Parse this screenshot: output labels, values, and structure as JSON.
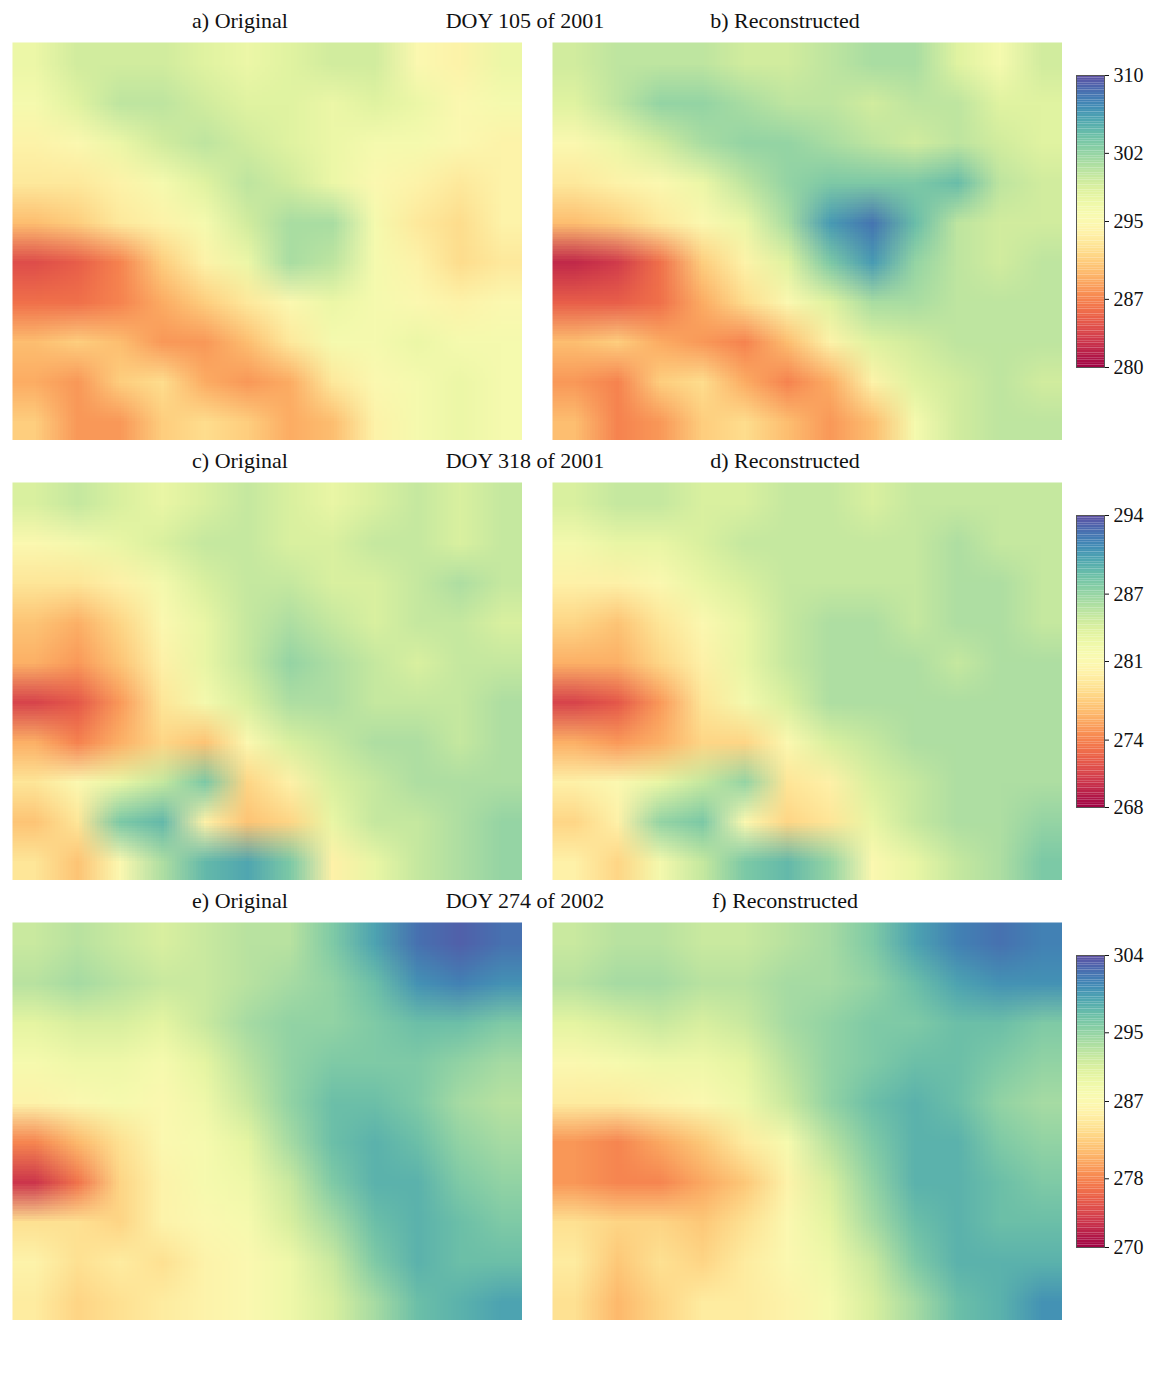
{
  "chart_data": [
    {
      "type": "heatmap",
      "title": "DOY 105 of 2001",
      "tick_labels": false,
      "colorbar": {
        "range": [
          280,
          310
        ],
        "ticks": [
          280,
          287,
          295,
          302,
          310
        ]
      },
      "panels": [
        {
          "title": "a) Original",
          "cells": [
            [
              297,
              299,
              299,
              299,
              298,
              297,
              298,
              299,
              299,
              295,
              294,
              297
            ],
            [
              296,
              298,
              300,
              300,
              299,
              298,
              298,
              297,
              298,
              297,
              295,
              296
            ],
            [
              294,
              295,
              297,
              299,
              300,
              299,
              298,
              297,
              296,
              296,
              295,
              294
            ],
            [
              293,
              293,
              294,
              296,
              298,
              300,
              299,
              297,
              295,
              294,
              293,
              294
            ],
            [
              290,
              291,
              293,
              294,
              296,
              299,
              301,
              301,
              296,
              293,
              292,
              294
            ],
            [
              284,
              285,
              287,
              291,
              294,
              297,
              301,
              300,
              296,
              294,
              292,
              293
            ],
            [
              286,
              286,
              287,
              289,
              291,
              293,
              295,
              297,
              296,
              295,
              294,
              295
            ],
            [
              290,
              291,
              290,
              288,
              288,
              290,
              293,
              296,
              296,
              297,
              296,
              296
            ],
            [
              289,
              288,
              291,
              292,
              289,
              288,
              289,
              293,
              295,
              296,
              297,
              296
            ],
            [
              291,
              288,
              288,
              291,
              292,
              291,
              289,
              290,
              294,
              296,
              297,
              296
            ]
          ]
        },
        {
          "title": "b) Reconstructed",
          "cells": [
            [
              299,
              300,
              300,
              300,
              299,
              299,
              300,
              301,
              301,
              298,
              296,
              299
            ],
            [
              298,
              300,
              302,
              302,
              301,
              300,
              300,
              299,
              300,
              300,
              298,
              298
            ],
            [
              295,
              297,
              299,
              301,
              302,
              302,
              301,
              300,
              299,
              300,
              299,
              298
            ],
            [
              293,
              294,
              295,
              297,
              300,
              302,
              303,
              303,
              303,
              304,
              300,
              299
            ],
            [
              290,
              291,
              293,
              295,
              297,
              301,
              306,
              308,
              304,
              300,
              299,
              299
            ],
            [
              282,
              283,
              286,
              291,
              294,
              298,
              303,
              306,
              302,
              300,
              299,
              300
            ],
            [
              285,
              285,
              286,
              289,
              292,
              295,
              298,
              301,
              301,
              300,
              300,
              300
            ],
            [
              290,
              291,
              289,
              288,
              287,
              290,
              294,
              298,
              299,
              300,
              300,
              300
            ],
            [
              288,
              287,
              291,
              292,
              289,
              287,
              289,
              294,
              298,
              299,
              300,
              299
            ],
            [
              290,
              287,
              288,
              291,
              292,
              290,
              288,
              290,
              296,
              299,
              300,
              300
            ]
          ]
        }
      ]
    },
    {
      "type": "heatmap",
      "title": "DOY 318 of 2001",
      "tick_labels": false,
      "colorbar": {
        "range": [
          268,
          294
        ],
        "ticks": [
          268,
          274,
          281,
          287,
          294
        ]
      },
      "panels": [
        {
          "title": "c) Original",
          "cells": [
            [
              284,
              285,
              284,
              283,
              284,
              285,
              284,
              283,
              284,
              285,
              284,
              285
            ],
            [
              281,
              282,
              283,
              284,
              285,
              285,
              284,
              284,
              285,
              285,
              284,
              285
            ],
            [
              279,
              279,
              280,
              282,
              284,
              285,
              285,
              284,
              284,
              285,
              286,
              285
            ],
            [
              277,
              276,
              278,
              281,
              283,
              285,
              286,
              285,
              284,
              285,
              285,
              284
            ],
            [
              276,
              275,
              277,
              280,
              283,
              285,
              287,
              286,
              285,
              284,
              285,
              285
            ],
            [
              271,
              272,
              275,
              279,
              282,
              284,
              286,
              286,
              285,
              285,
              285,
              286
            ],
            [
              276,
              274,
              276,
              278,
              277,
              281,
              284,
              285,
              286,
              286,
              285,
              286
            ],
            [
              279,
              281,
              283,
              285,
              288,
              278,
              280,
              284,
              285,
              286,
              286,
              286
            ],
            [
              277,
              279,
              288,
              289,
              280,
              277,
              278,
              283,
              285,
              285,
              286,
              287
            ],
            [
              279,
              277,
              281,
              286,
              289,
              290,
              288,
              280,
              283,
              285,
              286,
              287
            ]
          ]
        },
        {
          "title": "d) Reconstructed",
          "cells": [
            [
              284,
              285,
              285,
              284,
              284,
              285,
              285,
              284,
              285,
              285,
              285,
              285
            ],
            [
              282,
              283,
              283,
              284,
              285,
              285,
              285,
              285,
              285,
              286,
              285,
              285
            ],
            [
              280,
              280,
              281,
              283,
              284,
              285,
              285,
              285,
              285,
              286,
              286,
              285
            ],
            [
              278,
              277,
              279,
              281,
              283,
              285,
              286,
              286,
              285,
              286,
              286,
              285
            ],
            [
              276,
              276,
              278,
              280,
              283,
              285,
              286,
              286,
              286,
              285,
              286,
              286
            ],
            [
              271,
              272,
              275,
              279,
              282,
              284,
              286,
              286,
              286,
              286,
              286,
              286
            ],
            [
              276,
              275,
              276,
              278,
              278,
              281,
              284,
              285,
              286,
              286,
              286,
              286
            ],
            [
              280,
              281,
              283,
              285,
              287,
              279,
              280,
              284,
              285,
              286,
              286,
              286
            ],
            [
              278,
              280,
              287,
              288,
              281,
              278,
              279,
              283,
              285,
              286,
              286,
              287
            ],
            [
              280,
              278,
              282,
              285,
              288,
              289,
              287,
              281,
              283,
              285,
              286,
              288
            ]
          ]
        }
      ]
    },
    {
      "type": "heatmap",
      "title": "DOY 274 of 2002",
      "tick_labels": false,
      "colorbar": {
        "range": [
          270,
          304
        ],
        "ticks": [
          270,
          278,
          287,
          295,
          304
        ]
      },
      "panels": [
        {
          "title": "e) Original",
          "cells": [
            [
              292,
              293,
              292,
              291,
              292,
              293,
              293,
              296,
              299,
              302,
              303,
              302
            ],
            [
              293,
              294,
              293,
              292,
              292,
              293,
              294,
              295,
              297,
              300,
              301,
              300
            ],
            [
              290,
              291,
              291,
              290,
              292,
              294,
              295,
              295,
              296,
              297,
              297,
              296
            ],
            [
              288,
              289,
              289,
              288,
              290,
              293,
              295,
              296,
              296,
              296,
              295,
              294
            ],
            [
              286,
              287,
              288,
              287,
              289,
              292,
              295,
              297,
              297,
              296,
              294,
              293
            ],
            [
              278,
              281,
              284,
              287,
              288,
              290,
              294,
              297,
              298,
              297,
              295,
              294
            ],
            [
              273,
              277,
              283,
              286,
              288,
              289,
              292,
              296,
              298,
              298,
              296,
              295
            ],
            [
              284,
              284,
              283,
              286,
              287,
              288,
              291,
              294,
              297,
              298,
              297,
              296
            ],
            [
              286,
              284,
              285,
              284,
              286,
              287,
              289,
              292,
              296,
              298,
              297,
              297
            ],
            [
              285,
              283,
              284,
              285,
              286,
              287,
              289,
              291,
              294,
              297,
              298,
              299
            ]
          ]
        },
        {
          "title": "f) Reconstructed",
          "cells": [
            [
              292,
              293,
              293,
              292,
              292,
              293,
              294,
              296,
              299,
              301,
              302,
              301
            ],
            [
              293,
              294,
              294,
              293,
              293,
              294,
              294,
              295,
              297,
              299,
              300,
              300
            ],
            [
              290,
              291,
              292,
              291,
              292,
              294,
              295,
              296,
              296,
              297,
              297,
              296
            ],
            [
              287,
              288,
              289,
              289,
              290,
              293,
              295,
              296,
              297,
              297,
              296,
              295
            ],
            [
              285,
              285,
              286,
              287,
              289,
              292,
              295,
              297,
              298,
              297,
              295,
              294
            ],
            [
              279,
              278,
              280,
              282,
              285,
              288,
              293,
              296,
              298,
              298,
              296,
              295
            ],
            [
              279,
              278,
              278,
              280,
              282,
              286,
              291,
              295,
              298,
              298,
              297,
              296
            ],
            [
              284,
              283,
              283,
              282,
              284,
              287,
              290,
              294,
              297,
              298,
              297,
              297
            ],
            [
              285,
              282,
              284,
              283,
              285,
              287,
              289,
              292,
              296,
              298,
              298,
              298
            ],
            [
              284,
              281,
              283,
              285,
              285,
              286,
              288,
              291,
              294,
              297,
              298,
              300
            ]
          ]
        }
      ]
    }
  ]
}
